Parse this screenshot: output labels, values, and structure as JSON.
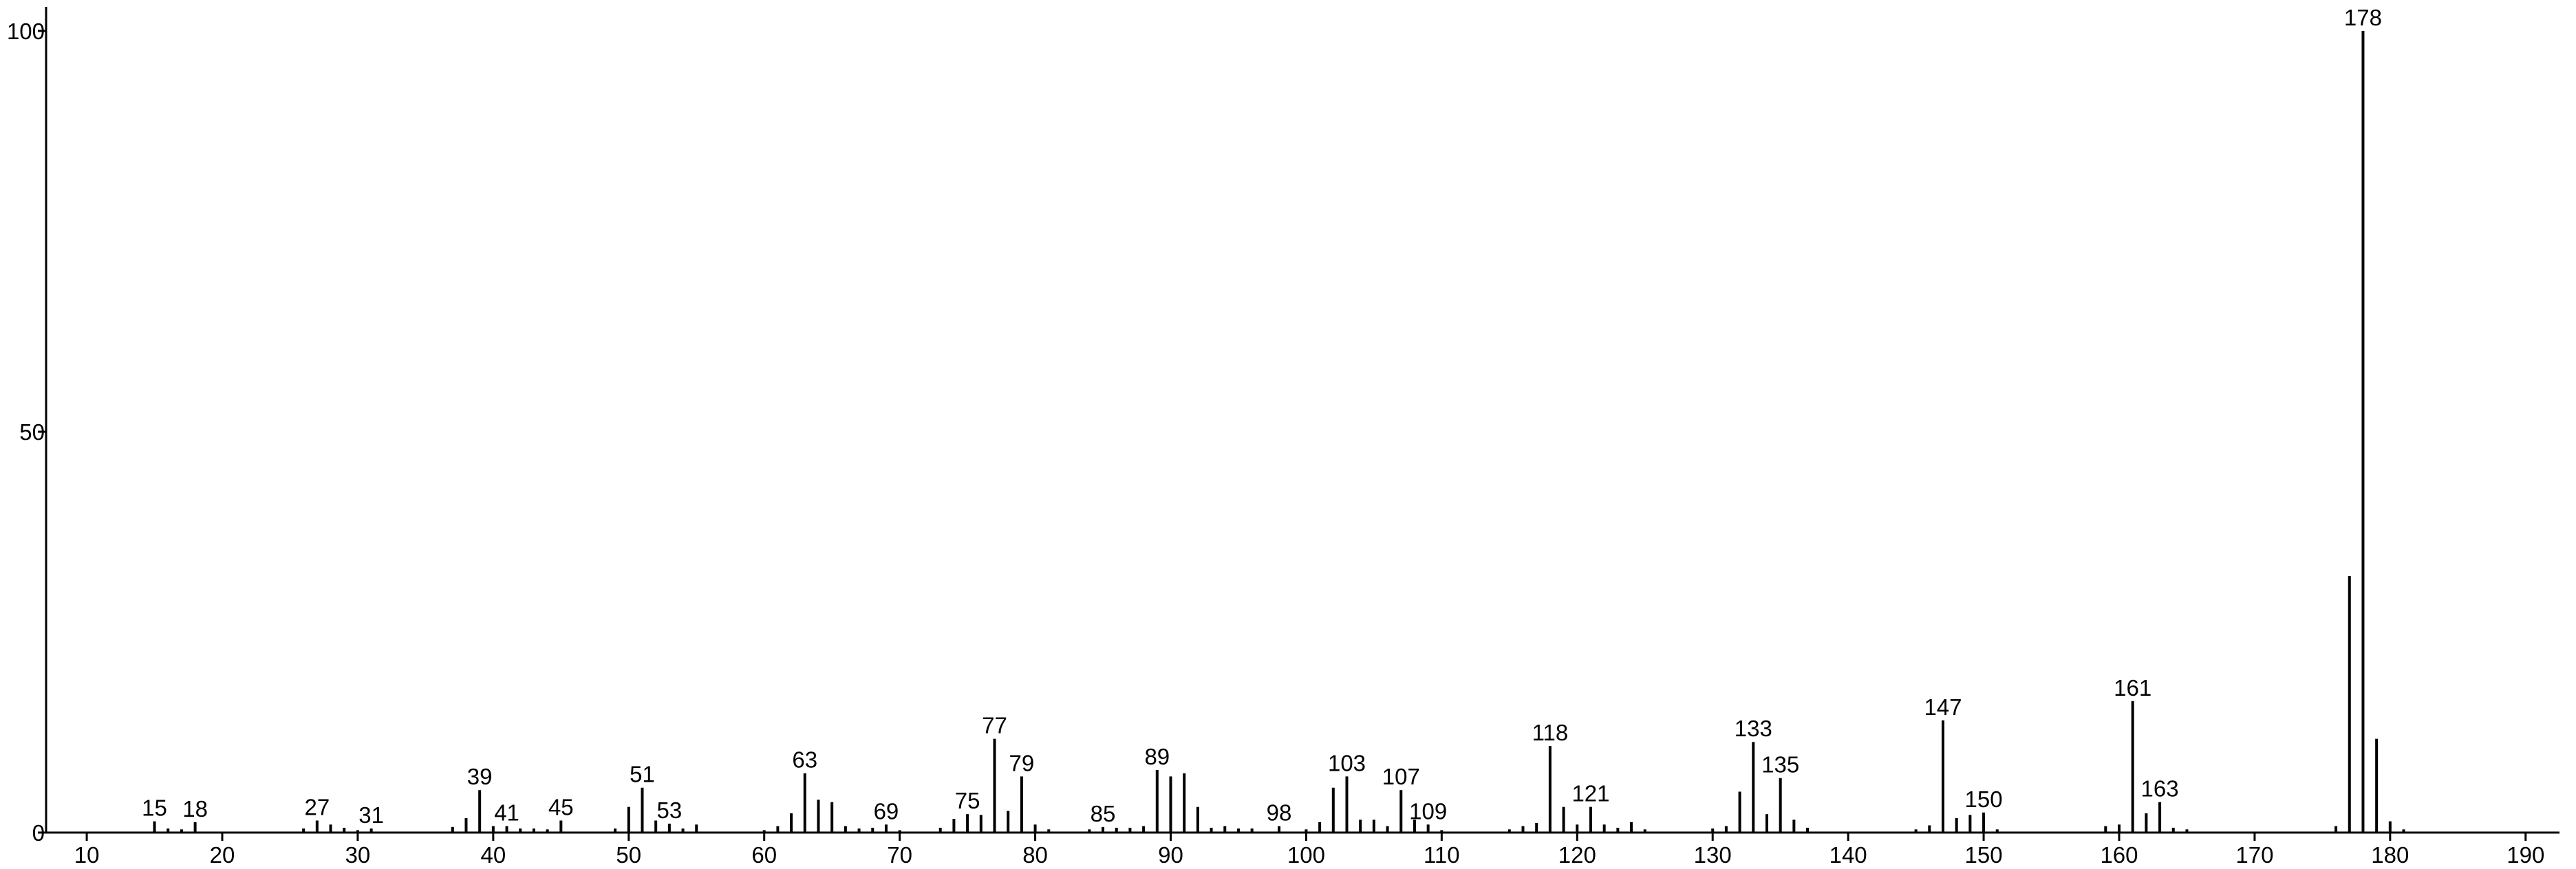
{
  "chart_data": {
    "type": "stem",
    "color": "#000000",
    "xlim": [
      7,
      192.5
    ],
    "ylim": [
      0,
      103
    ],
    "xticks": [
      10,
      20,
      30,
      40,
      50,
      60,
      70,
      80,
      90,
      100,
      110,
      120,
      130,
      140,
      150,
      160,
      170,
      180,
      190
    ],
    "yticks": [
      0,
      50,
      100
    ],
    "x": [
      15,
      16,
      17,
      18,
      26,
      27,
      28,
      29,
      30,
      31,
      37,
      38,
      39,
      40,
      41,
      42,
      43,
      44,
      45,
      49,
      50,
      51,
      52,
      53,
      54,
      55,
      60,
      61,
      62,
      63,
      64,
      65,
      66,
      67,
      68,
      69,
      70,
      73,
      74,
      75,
      76,
      77,
      78,
      79,
      80,
      81,
      84,
      85,
      86,
      87,
      88,
      89,
      90,
      91,
      92,
      93,
      94,
      95,
      96,
      98,
      100,
      101,
      102,
      103,
      104,
      105,
      106,
      107,
      108,
      109,
      110,
      115,
      116,
      117,
      118,
      119,
      120,
      121,
      122,
      123,
      124,
      125,
      130,
      131,
      132,
      133,
      134,
      135,
      136,
      137,
      145,
      146,
      147,
      148,
      149,
      150,
      151,
      159,
      160,
      161,
      162,
      163,
      164,
      165,
      176,
      177,
      178,
      179,
      180,
      181
    ],
    "values": [
      1.4,
      0.5,
      0.4,
      1.3,
      0.5,
      1.5,
      1.0,
      0.6,
      0.3,
      0.5,
      0.7,
      1.8,
      5.3,
      0.8,
      0.8,
      0.5,
      0.5,
      0.4,
      1.5,
      0.5,
      3.2,
      5.6,
      1.5,
      1.1,
      0.5,
      1.0,
      0.3,
      0.8,
      2.4,
      7.4,
      4.1,
      3.8,
      0.8,
      0.5,
      0.6,
      1.0,
      0.3,
      0.6,
      1.7,
      2.3,
      2.2,
      11.7,
      2.7,
      7.0,
      1.0,
      0.4,
      0.4,
      0.7,
      0.6,
      0.6,
      0.8,
      7.8,
      7.0,
      7.4,
      3.2,
      0.6,
      0.8,
      0.5,
      0.5,
      0.8,
      0.4,
      1.3,
      5.6,
      7.0,
      1.6,
      1.6,
      0.8,
      5.3,
      1.6,
      1.0,
      0.3,
      0.4,
      0.8,
      1.2,
      10.8,
      3.2,
      1.0,
      3.2,
      1.0,
      0.6,
      1.3,
      0.4,
      0.5,
      0.8,
      5.1,
      11.3,
      2.3,
      6.8,
      1.6,
      0.6,
      0.4,
      0.9,
      14.0,
      1.8,
      2.2,
      2.5,
      0.4,
      0.8,
      1.0,
      16.4,
      2.4,
      3.8,
      0.6,
      0.4,
      0.8,
      32.0,
      100,
      11.7,
      1.4,
      0.4
    ],
    "peak_labels": [
      15,
      18,
      27,
      31,
      39,
      41,
      45,
      51,
      53,
      63,
      69,
      75,
      77,
      79,
      85,
      89,
      98,
      103,
      107,
      109,
      118,
      121,
      133,
      135,
      147,
      150,
      161,
      163,
      178
    ]
  }
}
